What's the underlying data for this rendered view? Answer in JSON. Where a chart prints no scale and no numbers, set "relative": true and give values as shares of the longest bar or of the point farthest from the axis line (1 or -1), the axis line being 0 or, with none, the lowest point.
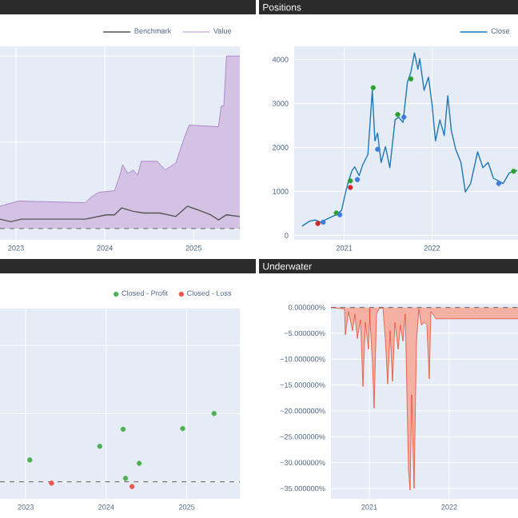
{
  "chart_data": [
    {
      "type": "line",
      "relative": true,
      "xlim": [
        2022.82,
        2025.52
      ],
      "xticks": [
        2023,
        2024,
        2025
      ],
      "grid": true,
      "legend": "top right",
      "marker": "none",
      "series": [
        {
          "name": "Benchmark",
          "color": "#555555",
          "x": [
            2022.82,
            2022.94,
            2023.06,
            2023.42,
            2023.78,
            2024.02,
            2024.11,
            2024.19,
            2024.32,
            2024.44,
            2024.62,
            2024.8,
            2024.93,
            2025.04,
            2025.19,
            2025.28,
            2025.37,
            2025.52
          ],
          "values": [
            0.055,
            0.04,
            0.055,
            0.055,
            0.055,
            0.08,
            0.08,
            0.12,
            0.1,
            0.09,
            0.09,
            0.07,
            0.13,
            0.11,
            0.08,
            0.05,
            0.08,
            0.07
          ]
        },
        {
          "name": "Value",
          "type": "area",
          "color": "#9467bd",
          "x": [
            2022.82,
            2023.03,
            2023.78,
            2023.84,
            2023.93,
            2024.11,
            2024.17,
            2024.2,
            2024.26,
            2024.32,
            2024.37,
            2024.41,
            2024.59,
            2024.68,
            2024.8,
            2024.89,
            2024.95,
            2025.28,
            2025.31,
            2025.34,
            2025.37,
            2025.52
          ],
          "values": [
            0.13,
            0.16,
            0.15,
            0.18,
            0.21,
            0.22,
            0.31,
            0.37,
            0.32,
            0.34,
            0.31,
            0.39,
            0.39,
            0.34,
            0.38,
            0.52,
            0.6,
            0.59,
            0.71,
            0.71,
            1.0,
            1.0
          ]
        }
      ],
      "ref_lines": [
        {
          "axis": "y",
          "value": 0,
          "color": "#777777",
          "line_style": "dashed"
        }
      ]
    },
    {
      "type": "line",
      "title": "Positions",
      "xlim": [
        2020.43,
        2022.98
      ],
      "xticks": [
        2021,
        2022
      ],
      "ylim": [
        -100,
        4300
      ],
      "yticks": [
        0,
        1000,
        2000,
        3000,
        4000
      ],
      "grid": true,
      "legend": "top right",
      "marker": "none",
      "series": [
        {
          "name": "Close",
          "color": "#1f77b4",
          "x": [
            2020.52,
            2020.61,
            2020.67,
            2020.73,
            2020.82,
            2020.91,
            2020.97,
            2021.01,
            2021.05,
            2021.09,
            2021.12,
            2021.17,
            2021.21,
            2021.27,
            2021.32,
            2021.35,
            2021.38,
            2021.42,
            2021.47,
            2021.52,
            2021.58,
            2021.62,
            2021.67,
            2021.72,
            2021.76,
            2021.8,
            2021.84,
            2021.86,
            2021.91,
            2021.96,
            2022.0,
            2022.04,
            2022.09,
            2022.14,
            2022.18,
            2022.22,
            2022.27,
            2022.33,
            2022.38,
            2022.44,
            2022.52,
            2022.58,
            2022.64,
            2022.7,
            2022.76,
            2022.81,
            2022.88,
            2022.97
          ],
          "values": [
            210,
            330,
            350,
            300,
            390,
            470,
            570,
            930,
            1240,
            1480,
            1560,
            1360,
            1600,
            1840,
            3300,
            2150,
            2330,
            1660,
            2020,
            1540,
            2630,
            2690,
            2570,
            3480,
            3720,
            4150,
            3780,
            4020,
            3300,
            3600,
            2990,
            2150,
            2630,
            2270,
            3180,
            2390,
            1960,
            1660,
            990,
            1180,
            1900,
            1540,
            1660,
            1300,
            1240,
            1180,
            1420,
            1480
          ]
        },
        {
          "type": "scatter",
          "color": "#2ca02c",
          "x": [
            2020.91,
            2021.07,
            2021.33,
            2021.61,
            2021.76,
            2022.93
          ],
          "values": [
            510,
            1240,
            3360,
            2750,
            3560,
            1460
          ]
        },
        {
          "type": "scatter",
          "color": "#d62728",
          "x": [
            2020.7,
            2021.07
          ],
          "values": [
            270,
            1090
          ]
        },
        {
          "type": "scatter",
          "color": "#3d7be0",
          "x": [
            2020.76,
            2020.95,
            2021.15,
            2021.38,
            2021.68,
            2022.76
          ],
          "values": [
            300,
            470,
            1270,
            1960,
            2690,
            1180
          ]
        }
      ]
    },
    {
      "type": "scatter",
      "relative": true,
      "xlim": [
        2022.68,
        2025.66
      ],
      "xticks": [
        2023,
        2024,
        2025
      ],
      "grid": true,
      "legend": "top right",
      "marker": "circle",
      "series": [
        {
          "name": "Closed - Profit",
          "color": "#4caf50",
          "x": [
            2023.05,
            2023.92,
            2024.21,
            2024.24,
            2024.41,
            2024.95,
            2025.34
          ],
          "values": [
            0.32,
            0.52,
            0.77,
            0.05,
            0.27,
            0.78,
            1.0
          ]
        },
        {
          "name": "Closed - Loss",
          "color": "#ef5350",
          "x": [
            2023.32,
            2024.32
          ],
          "values": [
            -0.02,
            -0.07
          ]
        }
      ],
      "ref_lines": [
        {
          "axis": "y",
          "value": 0,
          "color": "#777777",
          "line_style": "dashed"
        }
      ]
    },
    {
      "type": "area",
      "title": "Underwater",
      "xlim": [
        2020.52,
        2022.86
      ],
      "xticks": [
        2021,
        2022
      ],
      "ylim": [
        -37,
        0.7
      ],
      "grid": true,
      "marker": "none",
      "yticks": [
        {
          "value": 0,
          "label": "0.000000%"
        },
        {
          "value": -5,
          "label": "−5.000000%"
        },
        {
          "value": -10,
          "label": "−10.000000%"
        },
        {
          "value": -15,
          "label": "−15.000000%"
        },
        {
          "value": -20,
          "label": "−20.000000%"
        },
        {
          "value": -25,
          "label": "−25.000000%"
        },
        {
          "value": -30,
          "label": "−30.000000%"
        },
        {
          "value": -35,
          "label": "−35.000000%"
        }
      ],
      "series": [
        {
          "color": "#e5391b",
          "x": [
            2020.52,
            2020.69,
            2020.7,
            2020.74,
            2020.79,
            2020.82,
            2020.85,
            2020.89,
            2020.92,
            2020.95,
            2020.99,
            2021.01,
            2021.0,
            2021.04,
            2021.06,
            2021.09,
            2021.12,
            2021.17,
            2021.2,
            2021.23,
            2021.26,
            2021.29,
            2021.32,
            2021.36,
            2021.39,
            2021.42,
            2021.45,
            2021.49,
            2021.51,
            2021.53,
            2021.56,
            2021.59,
            2021.62,
            2021.65,
            2021.69,
            2021.72,
            2021.75,
            2021.77,
            2021.82,
            2021.83,
            2022.86
          ],
          "values": [
            0,
            -0.3,
            -5.3,
            -0.8,
            -4.5,
            -1.3,
            -6.0,
            -2.4,
            -15.3,
            -2.9,
            -8.1,
            -0.3,
            -0.3,
            -10.7,
            -19.5,
            -1.3,
            -0.3,
            0,
            -6.0,
            -14.8,
            -4.5,
            -14.3,
            -2.9,
            -8.1,
            -3.4,
            -6.5,
            -1.3,
            -31.4,
            -35.3,
            -16.9,
            -35.0,
            -6.5,
            -0.3,
            -3.4,
            -2.9,
            -3.4,
            -13.8,
            -0.8,
            -1.9,
            -2.2,
            -2.2
          ]
        }
      ],
      "ref_lines": [
        {
          "axis": "y",
          "value": 0,
          "color": "#777777",
          "line_style": "dashed"
        }
      ]
    }
  ]
}
